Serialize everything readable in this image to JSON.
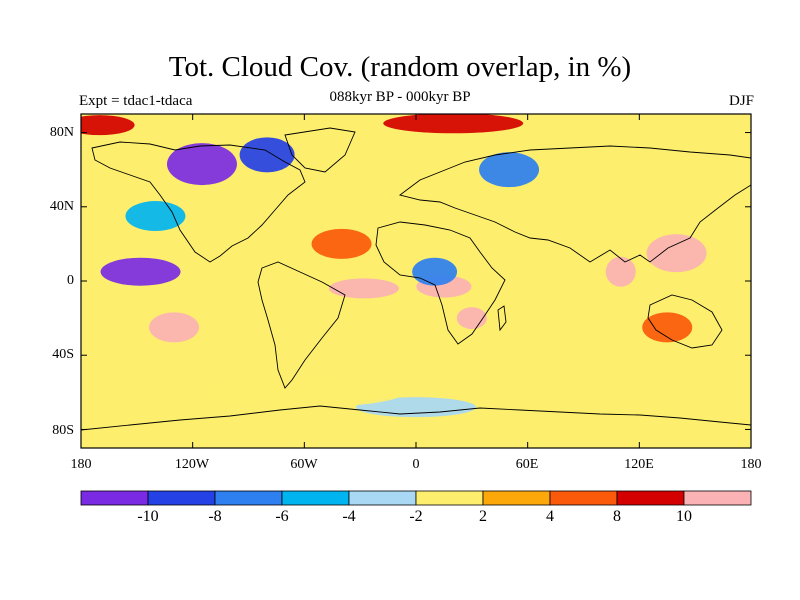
{
  "title": "Tot. Cloud Cov. (random overlap, in %)",
  "left_string": "Expt = tdac1-tdaca",
  "center_string": "088kyr BP - 000kyr BP",
  "right_string": "DJF",
  "lat_ticks": [
    "80N",
    "40N",
    "0",
    "40S",
    "80S"
  ],
  "lon_ticks": [
    "180",
    "120W",
    "60W",
    "0",
    "60E",
    "120E",
    "180"
  ],
  "labelbar": {
    "labels": [
      "-10",
      "-8",
      "-6",
      "-4",
      "-2",
      "2",
      "4",
      "8",
      "10"
    ],
    "colors": [
      "#7b2ae4",
      "#2441e6",
      "#2e7ff0",
      "#00b4f0",
      "#a8d8f4",
      "#fdef6d",
      "#fca80b",
      "#fa5a0a",
      "#d40000",
      "#fbb2b4"
    ]
  },
  "chart_data": {
    "type": "heatmap",
    "title": "Tot. Cloud Cov. (random overlap, in %)",
    "subtitle": "088kyr BP - 000kyr BP",
    "season": "DJF",
    "x_range": [
      -180,
      180
    ],
    "y_range": [
      -90,
      90
    ],
    "contour_levels": [
      -10,
      -8,
      -6,
      -4,
      -2,
      2,
      4,
      8,
      10
    ],
    "regions": [
      {
        "lon": -115,
        "lat": 63,
        "value": -12
      },
      {
        "lon": -80,
        "lat": 68,
        "value": -9
      },
      {
        "lon": -148,
        "lat": 5,
        "value": -12
      },
      {
        "lon": -140,
        "lat": 35,
        "value": -6
      },
      {
        "lon": -130,
        "lat": -25,
        "value": 12
      },
      {
        "lon": -28,
        "lat": -4,
        "value": 12
      },
      {
        "lon": 15,
        "lat": -3,
        "value": 12
      },
      {
        "lon": 140,
        "lat": 15,
        "value": 12
      },
      {
        "lon": 110,
        "lat": 5,
        "value": 12
      },
      {
        "lon": 30,
        "lat": -20,
        "value": 10
      },
      {
        "lon": 135,
        "lat": -25,
        "value": 6
      },
      {
        "lon": 10,
        "lat": 5,
        "value": -8
      },
      {
        "lon": 0,
        "lat": -68,
        "value": -3
      },
      {
        "lon": 20,
        "lat": 85,
        "value": 8
      },
      {
        "lon": -170,
        "lat": 84,
        "value": 9
      },
      {
        "lon": 50,
        "lat": 60,
        "value": -7
      },
      {
        "lon": -40,
        "lat": 20,
        "value": 5
      },
      {
        "lon": -60,
        "lat": -60,
        "value": 1
      }
    ]
  }
}
